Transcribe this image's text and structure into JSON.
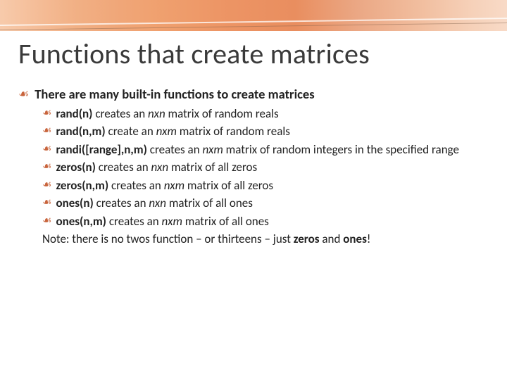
{
  "colors": {
    "bullet": "#c8643c",
    "title": "#3a3a3a",
    "text": "#222222",
    "stripe_gradient": [
      "#f7c9a8",
      "#f4b890",
      "#f0a97a",
      "#ef9f6d",
      "#ee9862",
      "#eb8b57",
      "#e78451",
      "#e9a07a",
      "#f0b896",
      "#f5cdb3",
      "#f8d9c5"
    ]
  },
  "bullet_glyph": "༎",
  "title": "Functions that create matrices",
  "lead": {
    "pre": "There are many built-in functions to create matrices"
  },
  "items": [
    {
      "fn": "rand(n)",
      "verb": " creates an ",
      "dim": "nxn",
      "tail": " matrix of random reals"
    },
    {
      "fn": "rand(n,m)",
      "verb": " create an ",
      "dim": "nxm",
      "tail": " matrix of random reals"
    },
    {
      "fn": "randi([range],n,m)",
      "verb": " creates an ",
      "dim": "nxm",
      "tail": " matrix of random integers in the specified range"
    },
    {
      "fn": "zeros(n)",
      "verb": " creates an ",
      "dim": "nxn",
      "tail": " matrix of all zeros"
    },
    {
      "fn": "zeros(n,m)",
      "verb": " creates an ",
      "dim": "nxm",
      "tail": " matrix of all zeros"
    },
    {
      "fn": "ones(n)",
      "verb": " creates an ",
      "dim": "nxn",
      "tail": " matrix of all ones"
    },
    {
      "fn": "ones(n,m)",
      "verb": " creates an ",
      "dim": "nxm",
      "tail": " matrix of all ones"
    }
  ],
  "note": {
    "pre": "Note: there is no twos function – or thirteens – just ",
    "b1": "zeros",
    "mid": " and ",
    "b2": "ones",
    "post": "!"
  }
}
